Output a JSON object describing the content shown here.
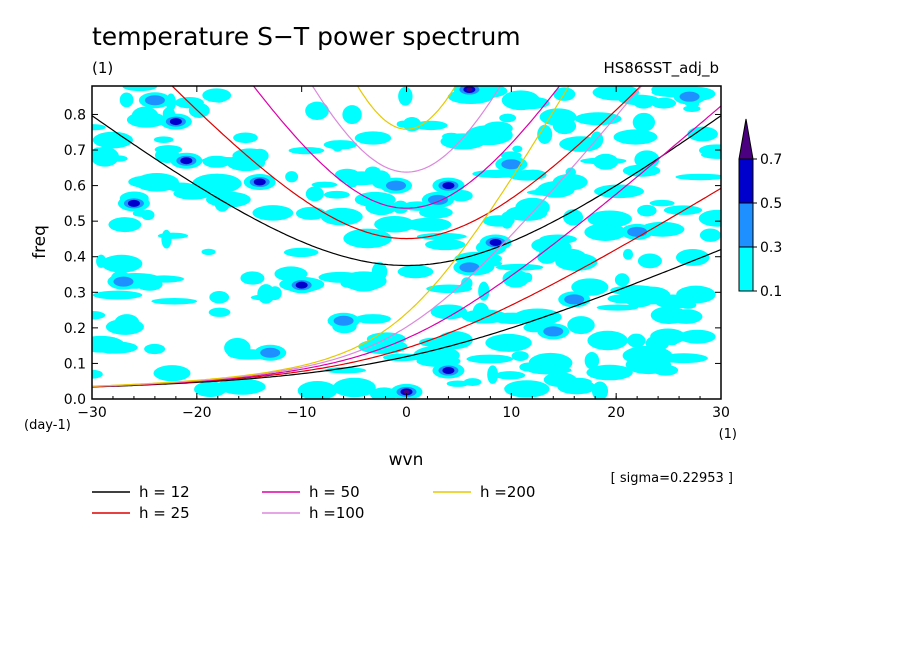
{
  "chart_data": {
    "type": "heatmap",
    "title": "temperature S−T power spectrum",
    "subtitle_left": "(1)",
    "subtitle_right": "HS86SST_adj_b",
    "xlabel": "wvn",
    "ylabel": "freq",
    "x_unit": "(1)",
    "y_unit": "(day-1)",
    "xlim": [
      -30,
      30
    ],
    "ylim": [
      0,
      0.88
    ],
    "x_ticks": [
      -30,
      -20,
      -10,
      0,
      10,
      20,
      30
    ],
    "x_tick_labels": [
      "−30",
      "−20",
      "−10",
      "0",
      "10",
      "20",
      "30"
    ],
    "y_ticks": [
      0.0,
      0.1,
      0.2,
      0.3,
      0.4,
      0.5,
      0.6,
      0.7,
      0.8
    ],
    "y_tick_labels": [
      "0.0",
      "0.1",
      "0.2",
      "0.3",
      "0.4",
      "0.5",
      "0.6",
      "0.7",
      "0.8"
    ],
    "annotation": "[ sigma=0.22953 ]",
    "colorbar": {
      "levels": [
        "0.1",
        "0.3",
        "0.5",
        "0.7"
      ],
      "colors": [
        "#00ffff",
        "#1e90ff",
        "#0000cd",
        "#4b0082"
      ]
    },
    "dispersion_curves": [
      {
        "label": "h = 12",
        "h": 12,
        "color": "#000000"
      },
      {
        "label": "h = 25",
        "h": 25,
        "color": "#dd0000"
      },
      {
        "label": "h = 50",
        "h": 50,
        "color": "#dd00aa"
      },
      {
        "label": "h =100",
        "h": 100,
        "color": "#dd88dd"
      },
      {
        "label": "h =200",
        "h": 200,
        "color": "#e8c800"
      }
    ],
    "peaks": [
      {
        "x": 0,
        "y": 0.02,
        "level": 0.7
      },
      {
        "x": 6,
        "y": 0.87,
        "level": 0.7
      },
      {
        "x": 4,
        "y": 0.6,
        "level": 0.5
      },
      {
        "x": 8.5,
        "y": 0.44,
        "level": 0.5
      },
      {
        "x": -22,
        "y": 0.78,
        "level": 0.5
      },
      {
        "x": -21,
        "y": 0.67,
        "level": 0.5
      },
      {
        "x": -26,
        "y": 0.55,
        "level": 0.5
      },
      {
        "x": -14,
        "y": 0.61,
        "level": 0.5
      },
      {
        "x": -10,
        "y": 0.32,
        "level": 0.5
      },
      {
        "x": 4,
        "y": 0.08,
        "level": 0.5
      },
      {
        "x": -24,
        "y": 0.84,
        "level": 0.3
      },
      {
        "x": 14,
        "y": 0.19,
        "level": 0.3
      },
      {
        "x": 3,
        "y": 0.56,
        "level": 0.3
      },
      {
        "x": -1,
        "y": 0.6,
        "level": 0.3
      },
      {
        "x": -13,
        "y": 0.13,
        "level": 0.3
      },
      {
        "x": 27,
        "y": 0.85,
        "level": 0.3
      },
      {
        "x": 16,
        "y": 0.28,
        "level": 0.3
      },
      {
        "x": 22,
        "y": 0.47,
        "level": 0.3
      },
      {
        "x": -6,
        "y": 0.22,
        "level": 0.3
      },
      {
        "x": 10,
        "y": 0.66,
        "level": 0.3
      },
      {
        "x": -27,
        "y": 0.33,
        "level": 0.3
      },
      {
        "x": 6,
        "y": 0.37,
        "level": 0.3
      }
    ]
  }
}
